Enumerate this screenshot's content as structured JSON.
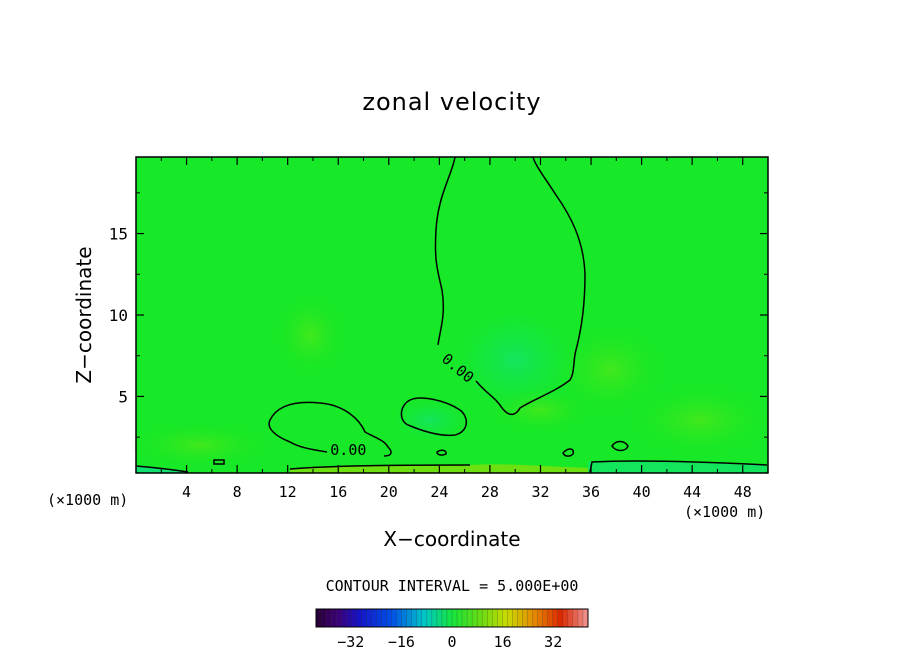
{
  "chart_data": {
    "type": "heatmap",
    "title": "zonal velocity",
    "xlabel": "X−coordinate",
    "ylabel": "Z−coordinate",
    "x_unit_label": "(×1000 m)",
    "xlim": [
      0,
      50
    ],
    "ylim": [
      0.3,
      19.7
    ],
    "x_ticks": [
      4,
      8,
      12,
      16,
      20,
      24,
      28,
      32,
      36,
      40,
      44,
      48
    ],
    "y_ticks": [
      5,
      10,
      15
    ],
    "contour_interval_text": "CONTOUR INTERVAL = 5.000E+00",
    "contour_labels": [
      {
        "text": "0.00",
        "x": 16.8,
        "z": 1.4
      },
      {
        "text": "0.00",
        "x": 25.2,
        "z": 6.5
      }
    ],
    "colorbar": {
      "ticks": [
        -32,
        -16,
        0,
        16,
        32
      ],
      "tick_labels": [
        "−32",
        "−16",
        "0",
        "16",
        "32"
      ],
      "range": [
        -43,
        43
      ]
    },
    "field_description_values": {
      "background_value": 2,
      "upper_negative_region_min": -4,
      "surface_positive_layer_max": 8
    },
    "grid": false,
    "background_color": "#ffffff",
    "field_color_main": "#17e827"
  }
}
